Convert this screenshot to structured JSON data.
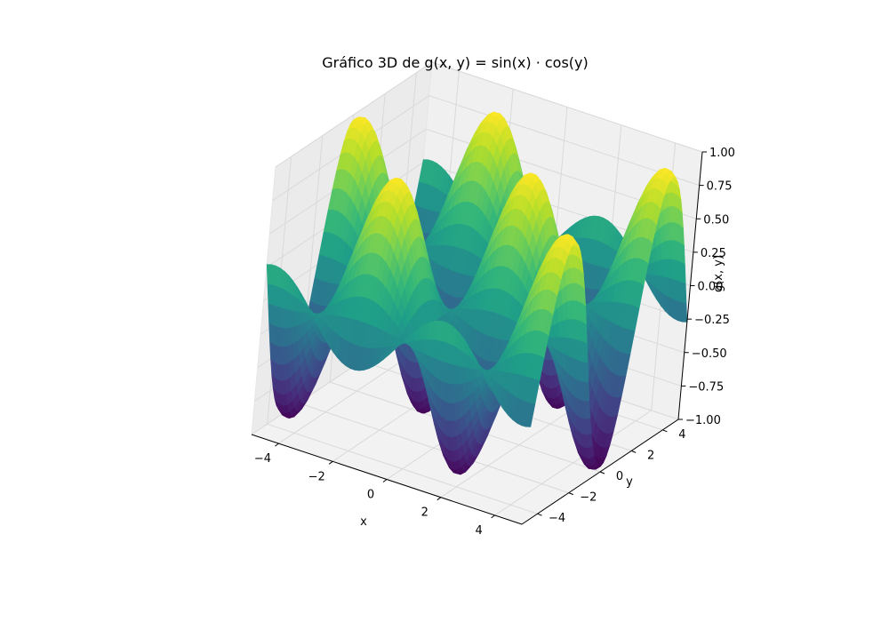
{
  "chart_data": {
    "type": "surface",
    "title": "Gráfico 3D de g(x, y) = sin(x) · cos(y)",
    "function": "sin(x) * cos(y)",
    "xlabel": "x",
    "ylabel": "y",
    "zlabel": "g(x, y)",
    "xlim": [
      -5,
      5
    ],
    "ylim": [
      -5,
      5
    ],
    "zlim": [
      -1,
      1
    ],
    "x_ticks": [
      -4,
      -2,
      0,
      2,
      4
    ],
    "y_ticks": [
      -4,
      -2,
      0,
      2,
      4
    ],
    "z_ticks": [
      -1.0,
      -0.75,
      -0.5,
      -0.25,
      0.0,
      0.25,
      0.5,
      0.75,
      1.0
    ],
    "x_tick_labels": [
      "−4",
      "−2",
      "0",
      "2",
      "4"
    ],
    "y_tick_labels": [
      "−4",
      "−2",
      "0",
      "2",
      "4"
    ],
    "z_tick_labels": [
      "−1.00",
      "−0.75",
      "−0.50",
      "−0.25",
      "0.00",
      "0.25",
      "0.50",
      "0.75",
      "1.00"
    ],
    "colormap": "viridis",
    "grid": true,
    "pane_color": "#f2f2f2",
    "grid_color": "#d9d9d9"
  }
}
